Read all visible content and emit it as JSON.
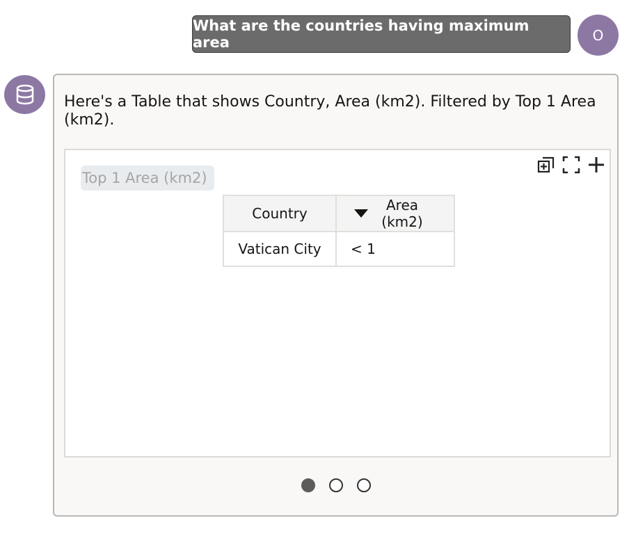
{
  "user_message": {
    "text": "What are the countries having maximum area",
    "avatar_initial": "O"
  },
  "bot": {
    "avatar_icon": "database-icon",
    "message": "Here's a Table that shows Country, Area (km2). Filtered by Top 1 Area (km2).",
    "filter_chip": "Top 1 Area (km2)",
    "toolbar": {
      "icons": [
        "add-to-canvas-icon",
        "expand-icon",
        "plus-icon"
      ]
    },
    "table": {
      "columns": [
        "Country",
        "Area (km2)"
      ],
      "sort_indicator": "descending",
      "rows": [
        [
          "Vatican City",
          "< 1"
        ]
      ]
    },
    "pagination": {
      "pages": 3,
      "current": 1
    }
  },
  "colors": {
    "accent": "#8d78a4",
    "user_bubble": "#6b6b6b"
  }
}
